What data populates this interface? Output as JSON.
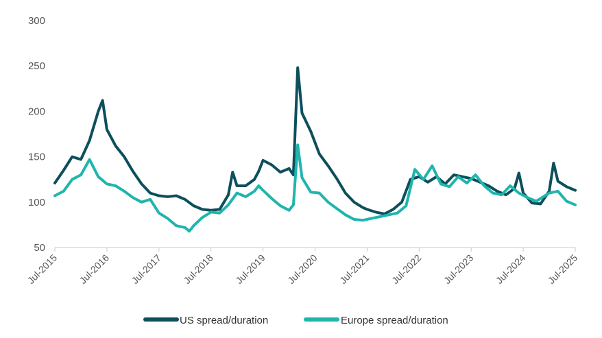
{
  "chart_data": {
    "type": "line",
    "title": "",
    "xlabel": "",
    "ylabel": "",
    "ylim": [
      50,
      300
    ],
    "yticks": [
      50,
      100,
      150,
      200,
      250,
      300
    ],
    "xlim": [
      "2015-07",
      "2025-07"
    ],
    "xticks": [
      "Jul-2015",
      "Jul-2016",
      "Jul-2017",
      "Jul-2018",
      "Jul-2019",
      "Jul-2020",
      "Jul-2021",
      "Jul-2022",
      "Jul-2023",
      "Jul-2024",
      "Jul-2025"
    ],
    "grid": false,
    "legend": "bottom-center",
    "series": [
      {
        "name": "US spread/duration",
        "color": "#0d4f5c",
        "points": [
          [
            "2015-07",
            121
          ],
          [
            "2015-09",
            135
          ],
          [
            "2015-11",
            150
          ],
          [
            "2016-01",
            147
          ],
          [
            "2016-03",
            168
          ],
          [
            "2016-05",
            200
          ],
          [
            "2016-06",
            212
          ],
          [
            "2016-07",
            180
          ],
          [
            "2016-09",
            162
          ],
          [
            "2016-11",
            150
          ],
          [
            "2017-01",
            134
          ],
          [
            "2017-03",
            120
          ],
          [
            "2017-05",
            110
          ],
          [
            "2017-07",
            107
          ],
          [
            "2017-09",
            106
          ],
          [
            "2017-11",
            107
          ],
          [
            "2018-01",
            103
          ],
          [
            "2018-03",
            96
          ],
          [
            "2018-05",
            92
          ],
          [
            "2018-07",
            91
          ],
          [
            "2018-09",
            92
          ],
          [
            "2018-11",
            108
          ],
          [
            "2018-12",
            133
          ],
          [
            "2019-01",
            118
          ],
          [
            "2019-03",
            118
          ],
          [
            "2019-05",
            125
          ],
          [
            "2019-06",
            134
          ],
          [
            "2019-07",
            146
          ],
          [
            "2019-09",
            141
          ],
          [
            "2019-11",
            133
          ],
          [
            "2020-01",
            137
          ],
          [
            "2020-02",
            130
          ],
          [
            "2020-03",
            248
          ],
          [
            "2020-04",
            198
          ],
          [
            "2020-06",
            178
          ],
          [
            "2020-08",
            153
          ],
          [
            "2020-10",
            140
          ],
          [
            "2020-12",
            126
          ],
          [
            "2021-02",
            110
          ],
          [
            "2021-04",
            100
          ],
          [
            "2021-06",
            94
          ],
          [
            "2021-07",
            92
          ],
          [
            "2021-09",
            89
          ],
          [
            "2021-11",
            87
          ],
          [
            "2022-01",
            92
          ],
          [
            "2022-03",
            100
          ],
          [
            "2022-05",
            125
          ],
          [
            "2022-07",
            128
          ],
          [
            "2022-09",
            122
          ],
          [
            "2022-11",
            128
          ],
          [
            "2023-01",
            120
          ],
          [
            "2023-03",
            130
          ],
          [
            "2023-05",
            128
          ],
          [
            "2023-07",
            126
          ],
          [
            "2023-09",
            122
          ],
          [
            "2023-11",
            118
          ],
          [
            "2024-01",
            112
          ],
          [
            "2024-03",
            108
          ],
          [
            "2024-05",
            115
          ],
          [
            "2024-06",
            132
          ],
          [
            "2024-07",
            110
          ],
          [
            "2024-09",
            99
          ],
          [
            "2024-11",
            98
          ],
          [
            "2025-01",
            112
          ],
          [
            "2025-02",
            143
          ],
          [
            "2025-03",
            123
          ],
          [
            "2025-05",
            117
          ],
          [
            "2025-07",
            113
          ]
        ]
      },
      {
        "name": "Europe spread/duration",
        "color": "#1fb5ad",
        "points": [
          [
            "2015-07",
            107
          ],
          [
            "2015-09",
            112
          ],
          [
            "2015-11",
            125
          ],
          [
            "2016-01",
            130
          ],
          [
            "2016-03",
            147
          ],
          [
            "2016-05",
            128
          ],
          [
            "2016-07",
            120
          ],
          [
            "2016-09",
            118
          ],
          [
            "2016-11",
            112
          ],
          [
            "2017-01",
            105
          ],
          [
            "2017-03",
            100
          ],
          [
            "2017-05",
            103
          ],
          [
            "2017-07",
            88
          ],
          [
            "2017-09",
            82
          ],
          [
            "2017-11",
            74
          ],
          [
            "2018-01",
            72
          ],
          [
            "2018-02",
            68
          ],
          [
            "2018-03",
            74
          ],
          [
            "2018-05",
            83
          ],
          [
            "2018-07",
            89
          ],
          [
            "2018-09",
            88
          ],
          [
            "2018-11",
            97
          ],
          [
            "2019-01",
            110
          ],
          [
            "2019-03",
            106
          ],
          [
            "2019-05",
            112
          ],
          [
            "2019-06",
            118
          ],
          [
            "2019-07",
            113
          ],
          [
            "2019-09",
            104
          ],
          [
            "2019-11",
            96
          ],
          [
            "2020-01",
            91
          ],
          [
            "2020-02",
            97
          ],
          [
            "2020-03",
            163
          ],
          [
            "2020-04",
            127
          ],
          [
            "2020-06",
            111
          ],
          [
            "2020-08",
            110
          ],
          [
            "2020-10",
            100
          ],
          [
            "2020-12",
            93
          ],
          [
            "2021-02",
            86
          ],
          [
            "2021-04",
            81
          ],
          [
            "2021-06",
            80
          ],
          [
            "2021-08",
            82
          ],
          [
            "2021-10",
            84
          ],
          [
            "2021-12",
            86
          ],
          [
            "2022-02",
            88
          ],
          [
            "2022-04",
            96
          ],
          [
            "2022-06",
            136
          ],
          [
            "2022-08",
            125
          ],
          [
            "2022-10",
            140
          ],
          [
            "2022-12",
            120
          ],
          [
            "2023-02",
            117
          ],
          [
            "2023-04",
            128
          ],
          [
            "2023-06",
            121
          ],
          [
            "2023-08",
            130
          ],
          [
            "2023-10",
            118
          ],
          [
            "2023-12",
            110
          ],
          [
            "2024-02",
            108
          ],
          [
            "2024-04",
            118
          ],
          [
            "2024-06",
            110
          ],
          [
            "2024-08",
            105
          ],
          [
            "2024-10",
            101
          ],
          [
            "2025-01",
            110
          ],
          [
            "2025-03",
            112
          ],
          [
            "2025-05",
            101
          ],
          [
            "2025-07",
            97
          ]
        ]
      }
    ]
  }
}
